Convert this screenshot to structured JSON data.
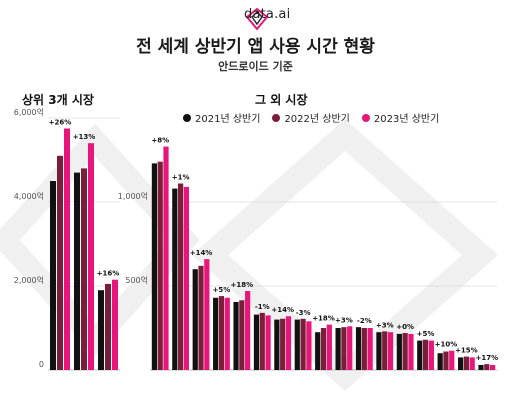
{
  "brand": {
    "name": "data.ai",
    "logo_icon": "diamond-logo-icon"
  },
  "title": "전 세계 상반기 앱 사용 시간 현황",
  "subtitle": "안드로이드 기준",
  "colors": {
    "y2021": "#111111",
    "y2022": "#7a1e3a",
    "y2023": "#e8157a",
    "grid": "#dddddd"
  },
  "chart_data": [
    {
      "type": "bar",
      "title": "상위 3개 시장",
      "ylim": [
        0,
        6000
      ],
      "yticks": [
        "0",
        "2,000억",
        "4,000억",
        "6,000억"
      ],
      "ytick_values": [
        0,
        2000,
        4000,
        6000
      ],
      "categories": [
        "",
        "",
        ""
      ],
      "series": [
        {
          "name": "2021년 상반기",
          "values": [
            4500,
            4700,
            1900
          ]
        },
        {
          "name": "2022년 상반기",
          "values": [
            5100,
            4800,
            2050
          ]
        },
        {
          "name": "2023년 상반기",
          "values": [
            5750,
            5400,
            2150
          ]
        }
      ],
      "annotations": [
        "+26%",
        "+13%",
        "+16%"
      ]
    },
    {
      "type": "bar",
      "title": "그 외 시장",
      "ylim": [
        0,
        1500
      ],
      "yticks": [
        "500억",
        "1,000억"
      ],
      "ytick_values": [
        500,
        1000
      ],
      "categories": [
        "",
        "",
        "",
        "",
        "",
        "",
        "",
        "",
        "",
        "",
        "",
        "",
        "",
        "",
        "",
        "",
        ""
      ],
      "series": [
        {
          "name": "2021년 상반기",
          "values": [
            1230,
            1080,
            600,
            430,
            405,
            330,
            300,
            300,
            225,
            250,
            255,
            225,
            215,
            175,
            100,
            75,
            30
          ]
        },
        {
          "name": "2022년 상반기",
          "values": [
            1240,
            1110,
            620,
            440,
            415,
            340,
            305,
            305,
            250,
            255,
            250,
            230,
            220,
            180,
            110,
            80,
            35
          ]
        },
        {
          "name": "2023년 상반기",
          "values": [
            1330,
            1090,
            660,
            430,
            470,
            325,
            320,
            290,
            270,
            260,
            250,
            225,
            215,
            175,
            115,
            75,
            30
          ]
        }
      ],
      "annotations": [
        "+8%",
        "+1%",
        "+14%",
        "+5%",
        "+18%",
        "-1%",
        "+14%",
        "-3%",
        "+18%",
        "+3%",
        "-2%",
        "+3%",
        "+0%",
        "+5%",
        "+10%",
        "+15%",
        "+17%"
      ]
    }
  ]
}
